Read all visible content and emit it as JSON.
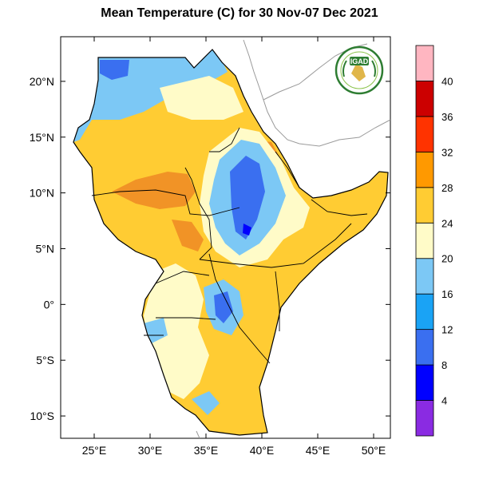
{
  "title": "Mean Temperature (C) for 30 Nov-07 Dec 2021",
  "logo": {
    "text": "IGAD",
    "icon": "igad-logo-icon"
  },
  "map": {
    "lon_range": [
      22,
      51.5
    ],
    "lat_range": [
      -12,
      24
    ],
    "lon_ticks": [
      "25°E",
      "30°E",
      "35°E",
      "40°E",
      "45°E",
      "50°E"
    ],
    "lat_ticks": [
      "20°N",
      "15°N",
      "10°N",
      "5°N",
      "0°",
      "5°S",
      "10°S"
    ]
  },
  "colorbar": {
    "labels": [
      "4",
      "8",
      "12",
      "16",
      "20",
      "24",
      "28",
      "32",
      "36",
      "40"
    ],
    "colors": [
      "#8a2be2",
      "#0000ff",
      "#3a6ff0",
      "#1aa3f5",
      "#7cc8f5",
      "#fffbc8",
      "#ffcc33",
      "#ff9900",
      "#ff3300",
      "#cc0000",
      "#ffb6c1"
    ]
  },
  "region_colors": {
    "warm": "#ffcc33",
    "hot": "#f19326",
    "mild": "#fffbc8",
    "cool": "#7cc8f5",
    "cold": "#3a6ff0",
    "coldest": "#0000ff"
  }
}
